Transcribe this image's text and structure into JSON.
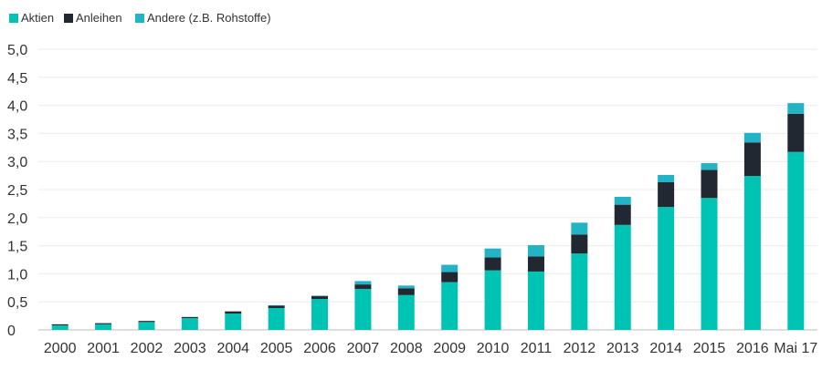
{
  "chart_data": {
    "type": "bar",
    "stacked": true,
    "categories": [
      "2000",
      "2001",
      "2002",
      "2003",
      "2004",
      "2005",
      "2006",
      "2007",
      "2008",
      "2009",
      "2010",
      "2011",
      "2012",
      "2013",
      "2014",
      "2015",
      "2016",
      "Mai 17"
    ],
    "series": [
      {
        "name": "Aktien",
        "color": "#00c4b3",
        "values": [
          0.08,
          0.1,
          0.14,
          0.21,
          0.29,
          0.39,
          0.55,
          0.73,
          0.62,
          0.85,
          1.06,
          1.04,
          1.36,
          1.87,
          2.19,
          2.35,
          2.74,
          3.17
        ]
      },
      {
        "name": "Anleihen",
        "color": "#222831",
        "values": [
          0.02,
          0.02,
          0.02,
          0.02,
          0.04,
          0.04,
          0.05,
          0.08,
          0.12,
          0.18,
          0.23,
          0.27,
          0.34,
          0.36,
          0.44,
          0.5,
          0.6,
          0.68
        ]
      },
      {
        "name": "Andere (z.B. Rohstoffe)",
        "color": "#22b3c5",
        "values": [
          0.0,
          0.0,
          0.0,
          0.0,
          0.0,
          0.01,
          0.01,
          0.06,
          0.05,
          0.13,
          0.16,
          0.2,
          0.21,
          0.14,
          0.13,
          0.12,
          0.17,
          0.19
        ]
      }
    ],
    "yticks": [
      "0",
      "0,5",
      "1,0",
      "1,5",
      "2,0",
      "2,5",
      "3,0",
      "3,5",
      "4,0",
      "4,5",
      "5,0"
    ],
    "ylim": [
      0,
      5
    ],
    "title": "",
    "xlabel": "",
    "ylabel": "",
    "grid": true,
    "legend": "top-left"
  }
}
